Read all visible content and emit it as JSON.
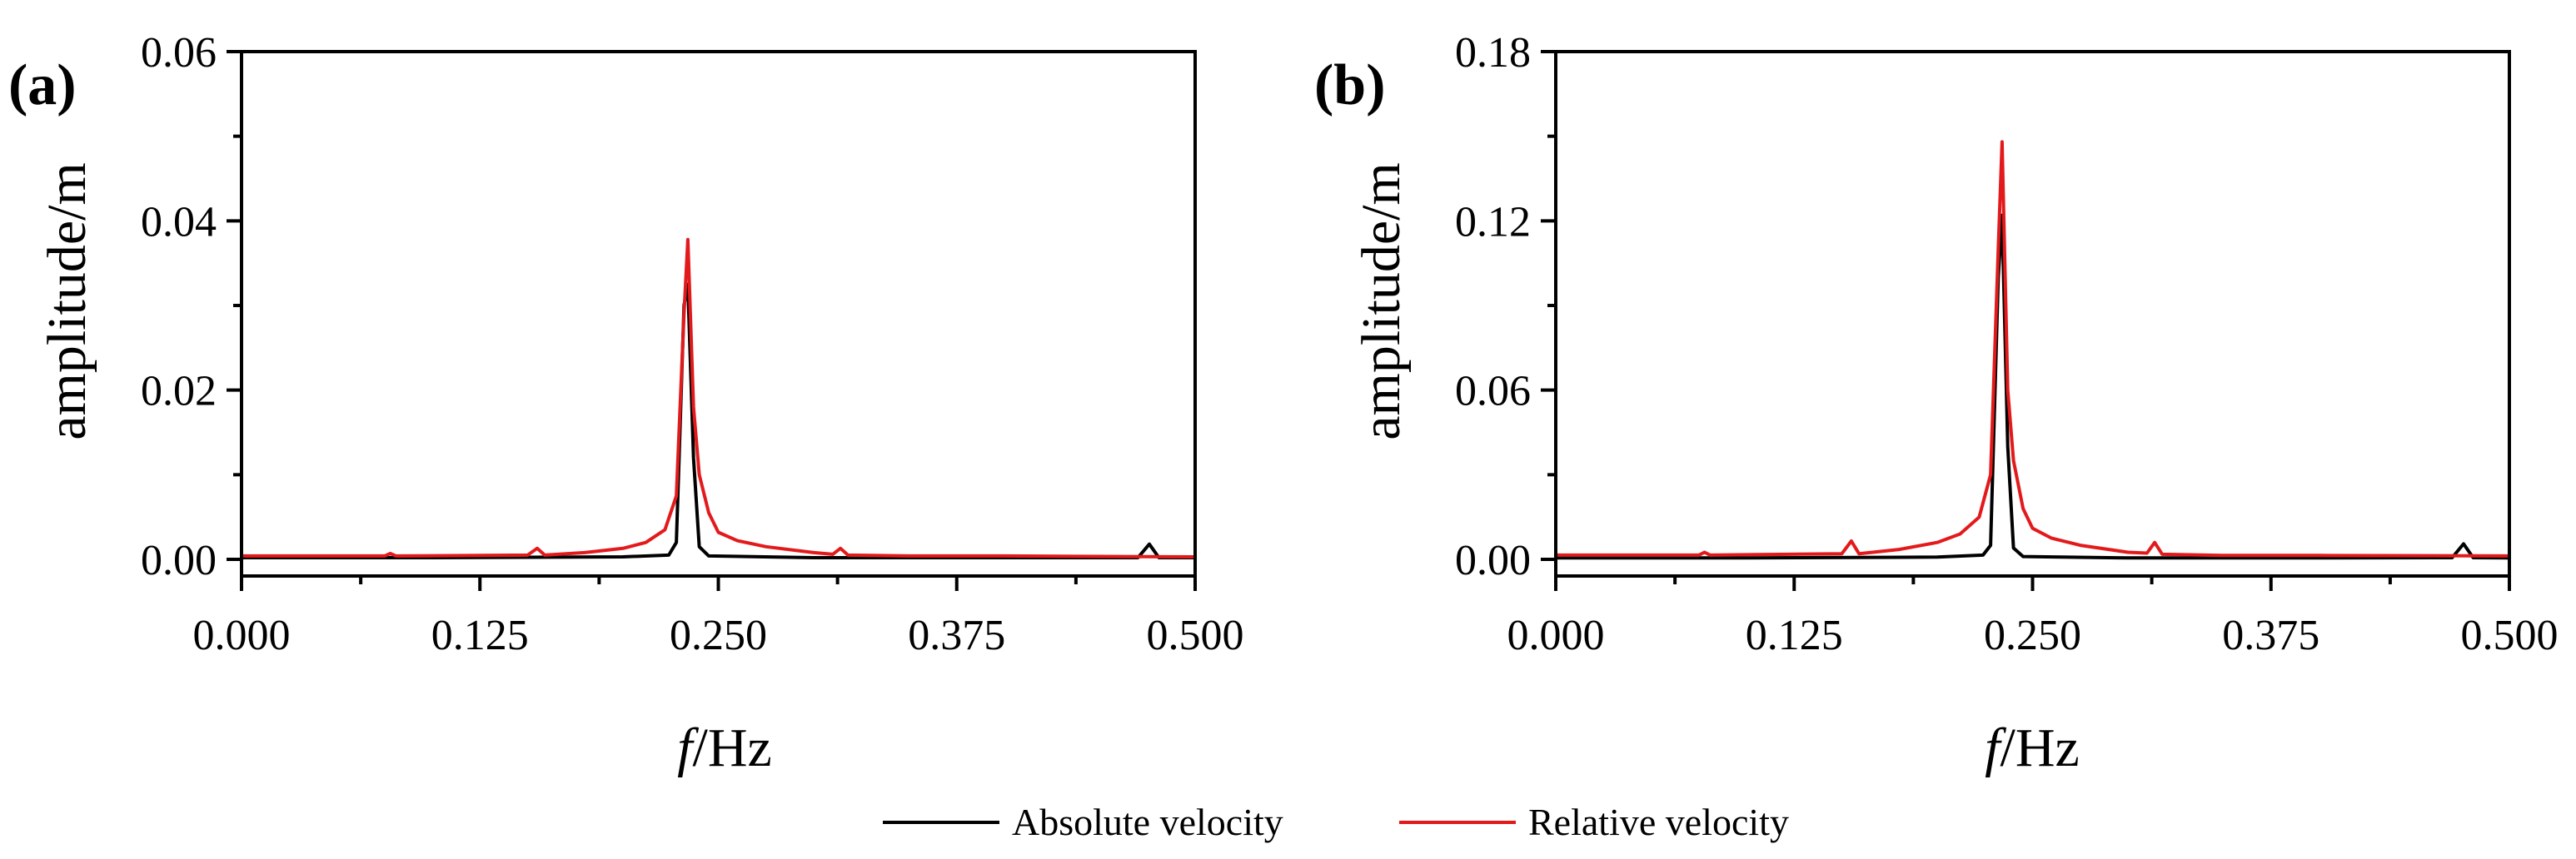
{
  "legend": {
    "placement": "bottom-center",
    "entries": [
      {
        "label": "Absolute velocity",
        "color": "#000000"
      },
      {
        "label": "Relative velocity",
        "color": "#e31a1c"
      }
    ]
  },
  "chart_data": [
    {
      "type": "line",
      "panel_label": "(a)",
      "xlabel_italic": "f",
      "xlabel_rest": "/Hz",
      "ylabel": "amplitude/m",
      "xlim": [
        0,
        0.5
      ],
      "ylim": [
        0,
        0.06
      ],
      "x_ticks": [
        "0.000",
        "0.125",
        "0.250",
        "0.375",
        "0.500"
      ],
      "y_ticks": [
        "0.00",
        "0.02",
        "0.04",
        "0.06"
      ],
      "grid": false,
      "series": [
        {
          "name": "Absolute velocity",
          "color": "#000000",
          "points": [
            [
              0.0,
              0.0002
            ],
            [
              0.1,
              0.0002
            ],
            [
              0.2,
              0.0003
            ],
            [
              0.224,
              0.0005
            ],
            [
              0.228,
              0.002
            ],
            [
              0.232,
              0.03
            ],
            [
              0.234,
              0.0325
            ],
            [
              0.237,
              0.012
            ],
            [
              0.24,
              0.0015
            ],
            [
              0.245,
              0.0004
            ],
            [
              0.3,
              0.0002
            ],
            [
              0.4,
              0.0002
            ],
            [
              0.47,
              0.0002
            ],
            [
              0.476,
              0.0018
            ],
            [
              0.481,
              0.0002
            ],
            [
              0.5,
              0.0002
            ]
          ]
        },
        {
          "name": "Relative velocity",
          "color": "#e31a1c",
          "points": [
            [
              0.0,
              0.0004
            ],
            [
              0.075,
              0.0004
            ],
            [
              0.078,
              0.0007
            ],
            [
              0.081,
              0.0004
            ],
            [
              0.15,
              0.0005
            ],
            [
              0.155,
              0.0013
            ],
            [
              0.159,
              0.0005
            ],
            [
              0.18,
              0.0008
            ],
            [
              0.2,
              0.0013
            ],
            [
              0.212,
              0.002
            ],
            [
              0.222,
              0.0035
            ],
            [
              0.228,
              0.0075
            ],
            [
              0.232,
              0.029
            ],
            [
              0.234,
              0.0378
            ],
            [
              0.237,
              0.018
            ],
            [
              0.24,
              0.01
            ],
            [
              0.245,
              0.0055
            ],
            [
              0.25,
              0.0032
            ],
            [
              0.26,
              0.0022
            ],
            [
              0.275,
              0.0015
            ],
            [
              0.3,
              0.0008
            ],
            [
              0.31,
              0.0006
            ],
            [
              0.314,
              0.0013
            ],
            [
              0.318,
              0.0005
            ],
            [
              0.35,
              0.0004
            ],
            [
              0.4,
              0.0004
            ],
            [
              0.5,
              0.0003
            ]
          ]
        }
      ]
    },
    {
      "type": "line",
      "panel_label": "(b)",
      "xlabel_italic": "f",
      "xlabel_rest": "/Hz",
      "ylabel": "amplitude/m",
      "xlim": [
        0,
        0.5
      ],
      "ylim": [
        0,
        0.18
      ],
      "x_ticks": [
        "0.000",
        "0.125",
        "0.250",
        "0.375",
        "0.500"
      ],
      "y_ticks": [
        "0.00",
        "0.06",
        "0.12",
        "0.18"
      ],
      "grid": false,
      "series": [
        {
          "name": "Absolute velocity",
          "color": "#000000",
          "points": [
            [
              0.0,
              0.0005
            ],
            [
              0.1,
              0.0005
            ],
            [
              0.2,
              0.0008
            ],
            [
              0.224,
              0.0015
            ],
            [
              0.228,
              0.005
            ],
            [
              0.232,
              0.1
            ],
            [
              0.234,
              0.122
            ],
            [
              0.237,
              0.04
            ],
            [
              0.24,
              0.004
            ],
            [
              0.245,
              0.001
            ],
            [
              0.3,
              0.0005
            ],
            [
              0.4,
              0.0005
            ],
            [
              0.47,
              0.0006
            ],
            [
              0.476,
              0.0055
            ],
            [
              0.481,
              0.0006
            ],
            [
              0.5,
              0.0005
            ]
          ]
        },
        {
          "name": "Relative velocity",
          "color": "#e31a1c",
          "points": [
            [
              0.0,
              0.0015
            ],
            [
              0.075,
              0.0015
            ],
            [
              0.078,
              0.0025
            ],
            [
              0.081,
              0.0015
            ],
            [
              0.15,
              0.002
            ],
            [
              0.155,
              0.0065
            ],
            [
              0.159,
              0.002
            ],
            [
              0.18,
              0.0035
            ],
            [
              0.2,
              0.006
            ],
            [
              0.212,
              0.009
            ],
            [
              0.222,
              0.015
            ],
            [
              0.228,
              0.03
            ],
            [
              0.232,
              0.11
            ],
            [
              0.234,
              0.148
            ],
            [
              0.237,
              0.06
            ],
            [
              0.24,
              0.035
            ],
            [
              0.245,
              0.018
            ],
            [
              0.25,
              0.011
            ],
            [
              0.26,
              0.0075
            ],
            [
              0.275,
              0.005
            ],
            [
              0.3,
              0.0025
            ],
            [
              0.31,
              0.0022
            ],
            [
              0.314,
              0.006
            ],
            [
              0.318,
              0.0018
            ],
            [
              0.35,
              0.0014
            ],
            [
              0.4,
              0.0014
            ],
            [
              0.5,
              0.0012
            ]
          ]
        }
      ]
    }
  ]
}
